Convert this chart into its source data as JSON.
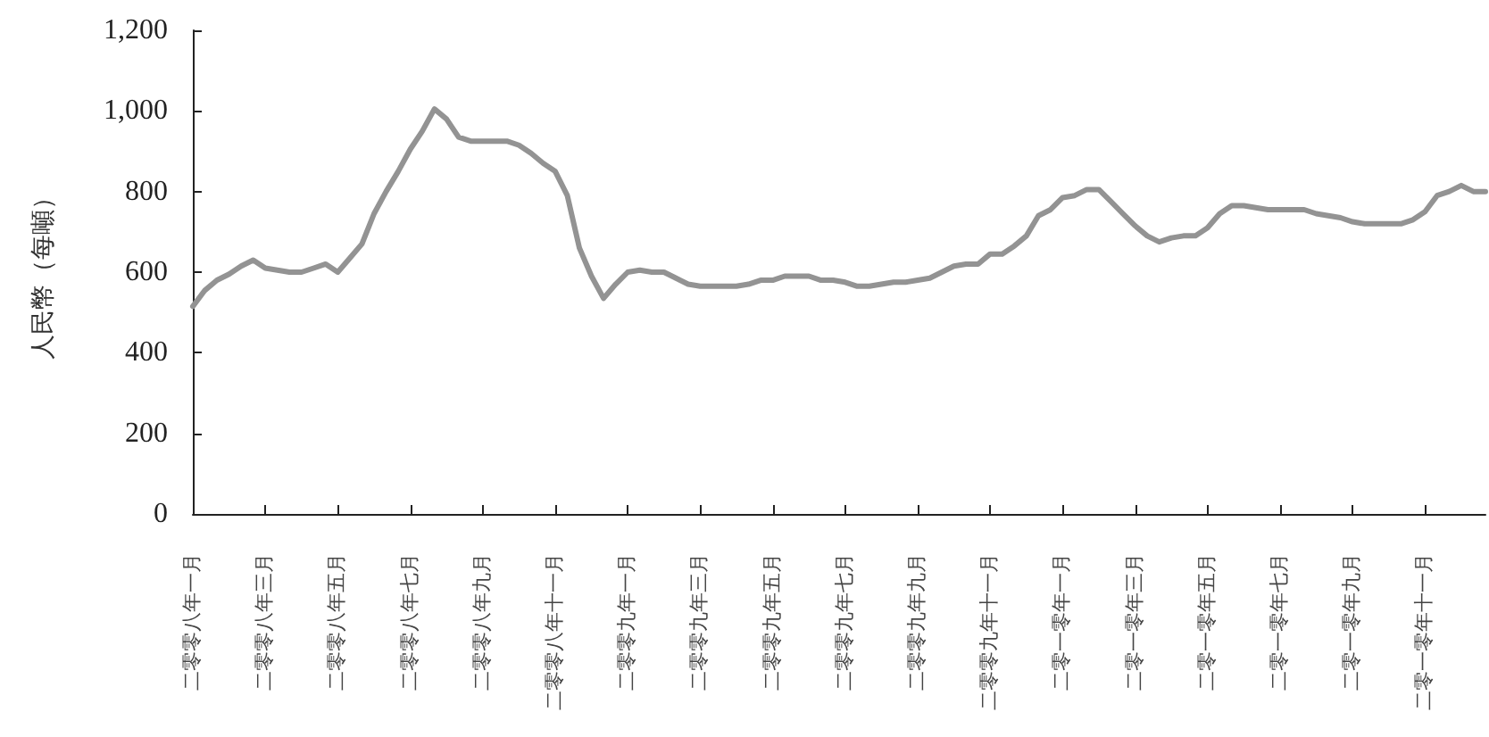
{
  "chart_data": {
    "type": "line",
    "ylabel": "人民幣（每噸）",
    "categories": [
      "二零零八年一月",
      null,
      null,
      null,
      null,
      null,
      "二零零八年三月",
      null,
      null,
      null,
      null,
      null,
      "二零零八年五月",
      null,
      null,
      null,
      null,
      null,
      "二零零八年七月",
      null,
      null,
      null,
      null,
      null,
      "二零零八年九月",
      null,
      null,
      null,
      null,
      null,
      "二零零八年十一月",
      null,
      null,
      null,
      null,
      null,
      "二零零九年一月",
      null,
      null,
      null,
      null,
      null,
      "二零零九年三月",
      null,
      null,
      null,
      null,
      null,
      "二零零九年五月",
      null,
      null,
      null,
      null,
      null,
      "二零零九年七月",
      null,
      null,
      null,
      null,
      null,
      "二零零九年九月",
      null,
      null,
      null,
      null,
      null,
      "二零零九年十一月",
      null,
      null,
      null,
      null,
      null,
      "二零一零年一月",
      null,
      null,
      null,
      null,
      null,
      "二零一零年三月",
      null,
      null,
      null,
      null,
      null,
      "二零一零年五月",
      null,
      null,
      null,
      null,
      null,
      "二零一零年七月",
      null,
      null,
      null,
      null,
      null,
      "二零一零年九月",
      null,
      null,
      null,
      null,
      null,
      "二零一零年十一月",
      null,
      null,
      null,
      null,
      null
    ],
    "series": [
      {
        "color": "#939393",
        "values": [
          515,
          555,
          580,
          595,
          615,
          630,
          610,
          605,
          600,
          600,
          610,
          620,
          600,
          635,
          670,
          745,
          800,
          850,
          905,
          950,
          1005,
          980,
          935,
          925,
          925,
          925,
          925,
          915,
          895,
          870,
          850,
          790,
          660,
          590,
          535,
          570,
          600,
          605,
          600,
          600,
          585,
          570,
          565,
          565,
          565,
          565,
          570,
          580,
          580,
          590,
          590,
          590,
          580,
          580,
          575,
          565,
          565,
          570,
          575,
          575,
          580,
          585,
          600,
          615,
          620,
          620,
          645,
          645,
          665,
          690,
          740,
          755,
          785,
          790,
          805,
          805,
          775,
          745,
          715,
          690,
          675,
          685,
          690,
          690,
          710,
          745,
          765,
          765,
          760,
          755,
          755,
          755,
          755,
          745,
          740,
          735,
          725,
          720,
          720,
          720,
          720,
          730,
          750,
          790,
          800,
          815,
          800,
          800
        ]
      }
    ],
    "ylim": [
      0,
      1200
    ],
    "yticks": [
      0,
      200,
      400,
      600,
      800,
      {
        "value": 1000,
        "label": "1,000"
      },
      {
        "value": 1200,
        "label": "1,200"
      }
    ],
    "grid": false,
    "marker": "none",
    "line_style": "solid"
  }
}
